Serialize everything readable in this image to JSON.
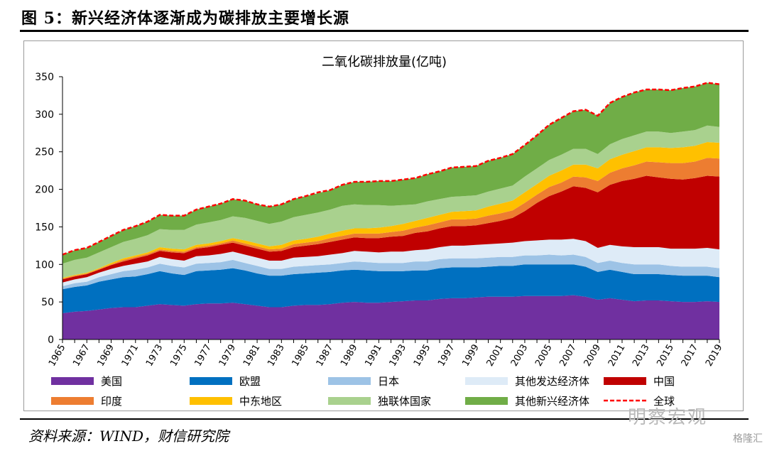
{
  "figure": {
    "title": "图 5：新兴经济体逐渐成为碳排放主要增长源",
    "source": "资料来源：WIND，财信研究院",
    "watermark": "明察宏观",
    "watermark2": "格隆汇"
  },
  "colors": {
    "美国": "#7030a0",
    "欧盟": "#0070c0",
    "日本": "#9dc3e6",
    "其他发达经济体": "#deebf7",
    "中国": "#c00000",
    "印度": "#ed7d31",
    "中东地区": "#ffc000",
    "独联体国家": "#a9d18e",
    "其他新兴经济体": "#70ad47",
    "全球": "#ff0000"
  },
  "chart_data": {
    "type": "area",
    "title": "二氧化碳排放量(亿吨)",
    "stacked": true,
    "ylim": [
      0,
      350
    ],
    "yticks": [
      0,
      50,
      100,
      150,
      200,
      250,
      300,
      350
    ],
    "legend_position": "bottom",
    "x": [
      1965,
      1966,
      1967,
      1968,
      1969,
      1970,
      1971,
      1972,
      1973,
      1974,
      1975,
      1976,
      1977,
      1978,
      1979,
      1980,
      1981,
      1982,
      1983,
      1984,
      1985,
      1986,
      1987,
      1988,
      1989,
      1990,
      1991,
      1992,
      1993,
      1994,
      1995,
      1996,
      1997,
      1998,
      1999,
      2000,
      2001,
      2002,
      2003,
      2004,
      2005,
      2006,
      2007,
      2008,
      2009,
      2010,
      2011,
      2012,
      2013,
      2014,
      2015,
      2016,
      2017,
      2018,
      2019
    ],
    "xtick_labels": [
      "1965",
      "1967",
      "1969",
      "1971",
      "1973",
      "1975",
      "1977",
      "1979",
      "1981",
      "1983",
      "1985",
      "1987",
      "1989",
      "1991",
      "1993",
      "1995",
      "1997",
      "1999",
      "2001",
      "2003",
      "2005",
      "2007",
      "2009",
      "2011",
      "2013",
      "2015",
      "2017",
      "2019"
    ],
    "series": [
      {
        "name": "美国",
        "values": [
          35,
          37,
          38,
          40,
          42,
          43,
          43,
          45,
          47,
          46,
          45,
          47,
          48,
          48,
          49,
          47,
          45,
          43,
          43,
          45,
          46,
          46,
          47,
          49,
          50,
          49,
          49,
          50,
          51,
          52,
          52,
          54,
          55,
          55,
          56,
          57,
          57,
          57,
          58,
          58,
          58,
          58,
          59,
          57,
          53,
          55,
          53,
          51,
          52,
          52,
          51,
          50,
          50,
          51,
          50
        ]
      },
      {
        "name": "欧盟",
        "values": [
          32,
          33,
          34,
          37,
          38,
          40,
          41,
          42,
          44,
          42,
          41,
          44,
          44,
          45,
          46,
          45,
          43,
          42,
          42,
          42,
          42,
          43,
          43,
          43,
          43,
          43,
          42,
          41,
          40,
          40,
          40,
          41,
          41,
          41,
          40,
          40,
          41,
          41,
          42,
          42,
          42,
          42,
          41,
          40,
          37,
          38,
          37,
          36,
          35,
          35,
          35,
          35,
          35,
          34,
          33
        ]
      },
      {
        "name": "日本",
        "values": [
          4,
          5,
          5,
          6,
          7,
          8,
          9,
          9,
          10,
          10,
          10,
          10,
          10,
          10,
          11,
          10,
          10,
          9,
          9,
          10,
          10,
          10,
          10,
          10,
          11,
          11,
          11,
          11,
          11,
          12,
          12,
          12,
          12,
          12,
          12,
          12,
          12,
          12,
          12,
          12,
          13,
          12,
          13,
          13,
          12,
          12,
          12,
          13,
          13,
          13,
          12,
          12,
          12,
          12,
          12
        ]
      },
      {
        "name": "其他发达经济体",
        "values": [
          5,
          5,
          6,
          6,
          7,
          7,
          8,
          8,
          9,
          9,
          9,
          10,
          10,
          11,
          11,
          11,
          11,
          11,
          11,
          12,
          12,
          12,
          13,
          13,
          14,
          14,
          14,
          15,
          15,
          15,
          16,
          16,
          17,
          17,
          18,
          18,
          18,
          19,
          19,
          20,
          20,
          21,
          21,
          21,
          20,
          21,
          22,
          23,
          23,
          23,
          23,
          24,
          24,
          25,
          25
        ]
      },
      {
        "name": "中国",
        "values": [
          4,
          4,
          4,
          4,
          5,
          6,
          7,
          8,
          8,
          9,
          10,
          10,
          11,
          12,
          12,
          12,
          12,
          12,
          13,
          14,
          15,
          16,
          17,
          18,
          18,
          18,
          19,
          20,
          21,
          23,
          24,
          25,
          26,
          26,
          26,
          28,
          30,
          33,
          40,
          50,
          58,
          64,
          70,
          71,
          74,
          80,
          87,
          91,
          95,
          93,
          93,
          92,
          94,
          96,
          97
        ]
      },
      {
        "name": "印度",
        "values": [
          1,
          1,
          1,
          1,
          1,
          2,
          2,
          2,
          2,
          2,
          2,
          2,
          2,
          2,
          3,
          3,
          3,
          3,
          3,
          4,
          4,
          4,
          5,
          5,
          5,
          6,
          6,
          6,
          7,
          7,
          8,
          8,
          9,
          9,
          9,
          10,
          10,
          10,
          11,
          11,
          12,
          12,
          13,
          14,
          15,
          16,
          17,
          18,
          19,
          20,
          21,
          22,
          22,
          24,
          24
        ]
      },
      {
        "name": "中东地区",
        "values": [
          1,
          1,
          1,
          1,
          2,
          2,
          2,
          2,
          3,
          3,
          3,
          3,
          3,
          3,
          3,
          4,
          4,
          4,
          5,
          5,
          5,
          6,
          6,
          7,
          7,
          7,
          8,
          8,
          9,
          9,
          10,
          10,
          10,
          11,
          11,
          12,
          13,
          13,
          14,
          14,
          15,
          16,
          16,
          17,
          17,
          18,
          18,
          19,
          19,
          20,
          20,
          21,
          21,
          21,
          21
        ]
      },
      {
        "name": "独联体国家",
        "values": [
          19,
          20,
          20,
          21,
          21,
          22,
          22,
          23,
          24,
          25,
          26,
          27,
          28,
          28,
          29,
          30,
          30,
          30,
          31,
          31,
          32,
          32,
          32,
          33,
          32,
          31,
          30,
          27,
          25,
          22,
          22,
          21,
          20,
          20,
          20,
          20,
          20,
          20,
          21,
          21,
          21,
          21,
          21,
          21,
          19,
          20,
          21,
          21,
          21,
          21,
          20,
          21,
          21,
          22,
          21
        ]
      },
      {
        "name": "其他新兴经济体",
        "values": [
          12,
          13,
          13,
          14,
          15,
          16,
          17,
          18,
          19,
          19,
          19,
          20,
          21,
          22,
          23,
          23,
          22,
          23,
          23,
          24,
          25,
          26,
          26,
          28,
          30,
          31,
          32,
          33,
          34,
          35,
          36,
          37,
          39,
          39,
          39,
          41,
          41,
          42,
          42,
          44,
          47,
          49,
          50,
          52,
          51,
          55,
          56,
          57,
          56,
          56,
          57,
          58,
          58,
          57,
          57
        ]
      }
    ],
    "total": {
      "name": "全球",
      "values": [
        113,
        119,
        122,
        130,
        138,
        146,
        151,
        157,
        166,
        165,
        165,
        173,
        177,
        181,
        187,
        185,
        180,
        177,
        180,
        187,
        191,
        196,
        199,
        206,
        210,
        210,
        211,
        211,
        213,
        215,
        220,
        224,
        229,
        230,
        231,
        238,
        242,
        247,
        259,
        272,
        286,
        295,
        304,
        306,
        298,
        315,
        323,
        329,
        333,
        333,
        332,
        335,
        337,
        342,
        340
      ]
    }
  }
}
